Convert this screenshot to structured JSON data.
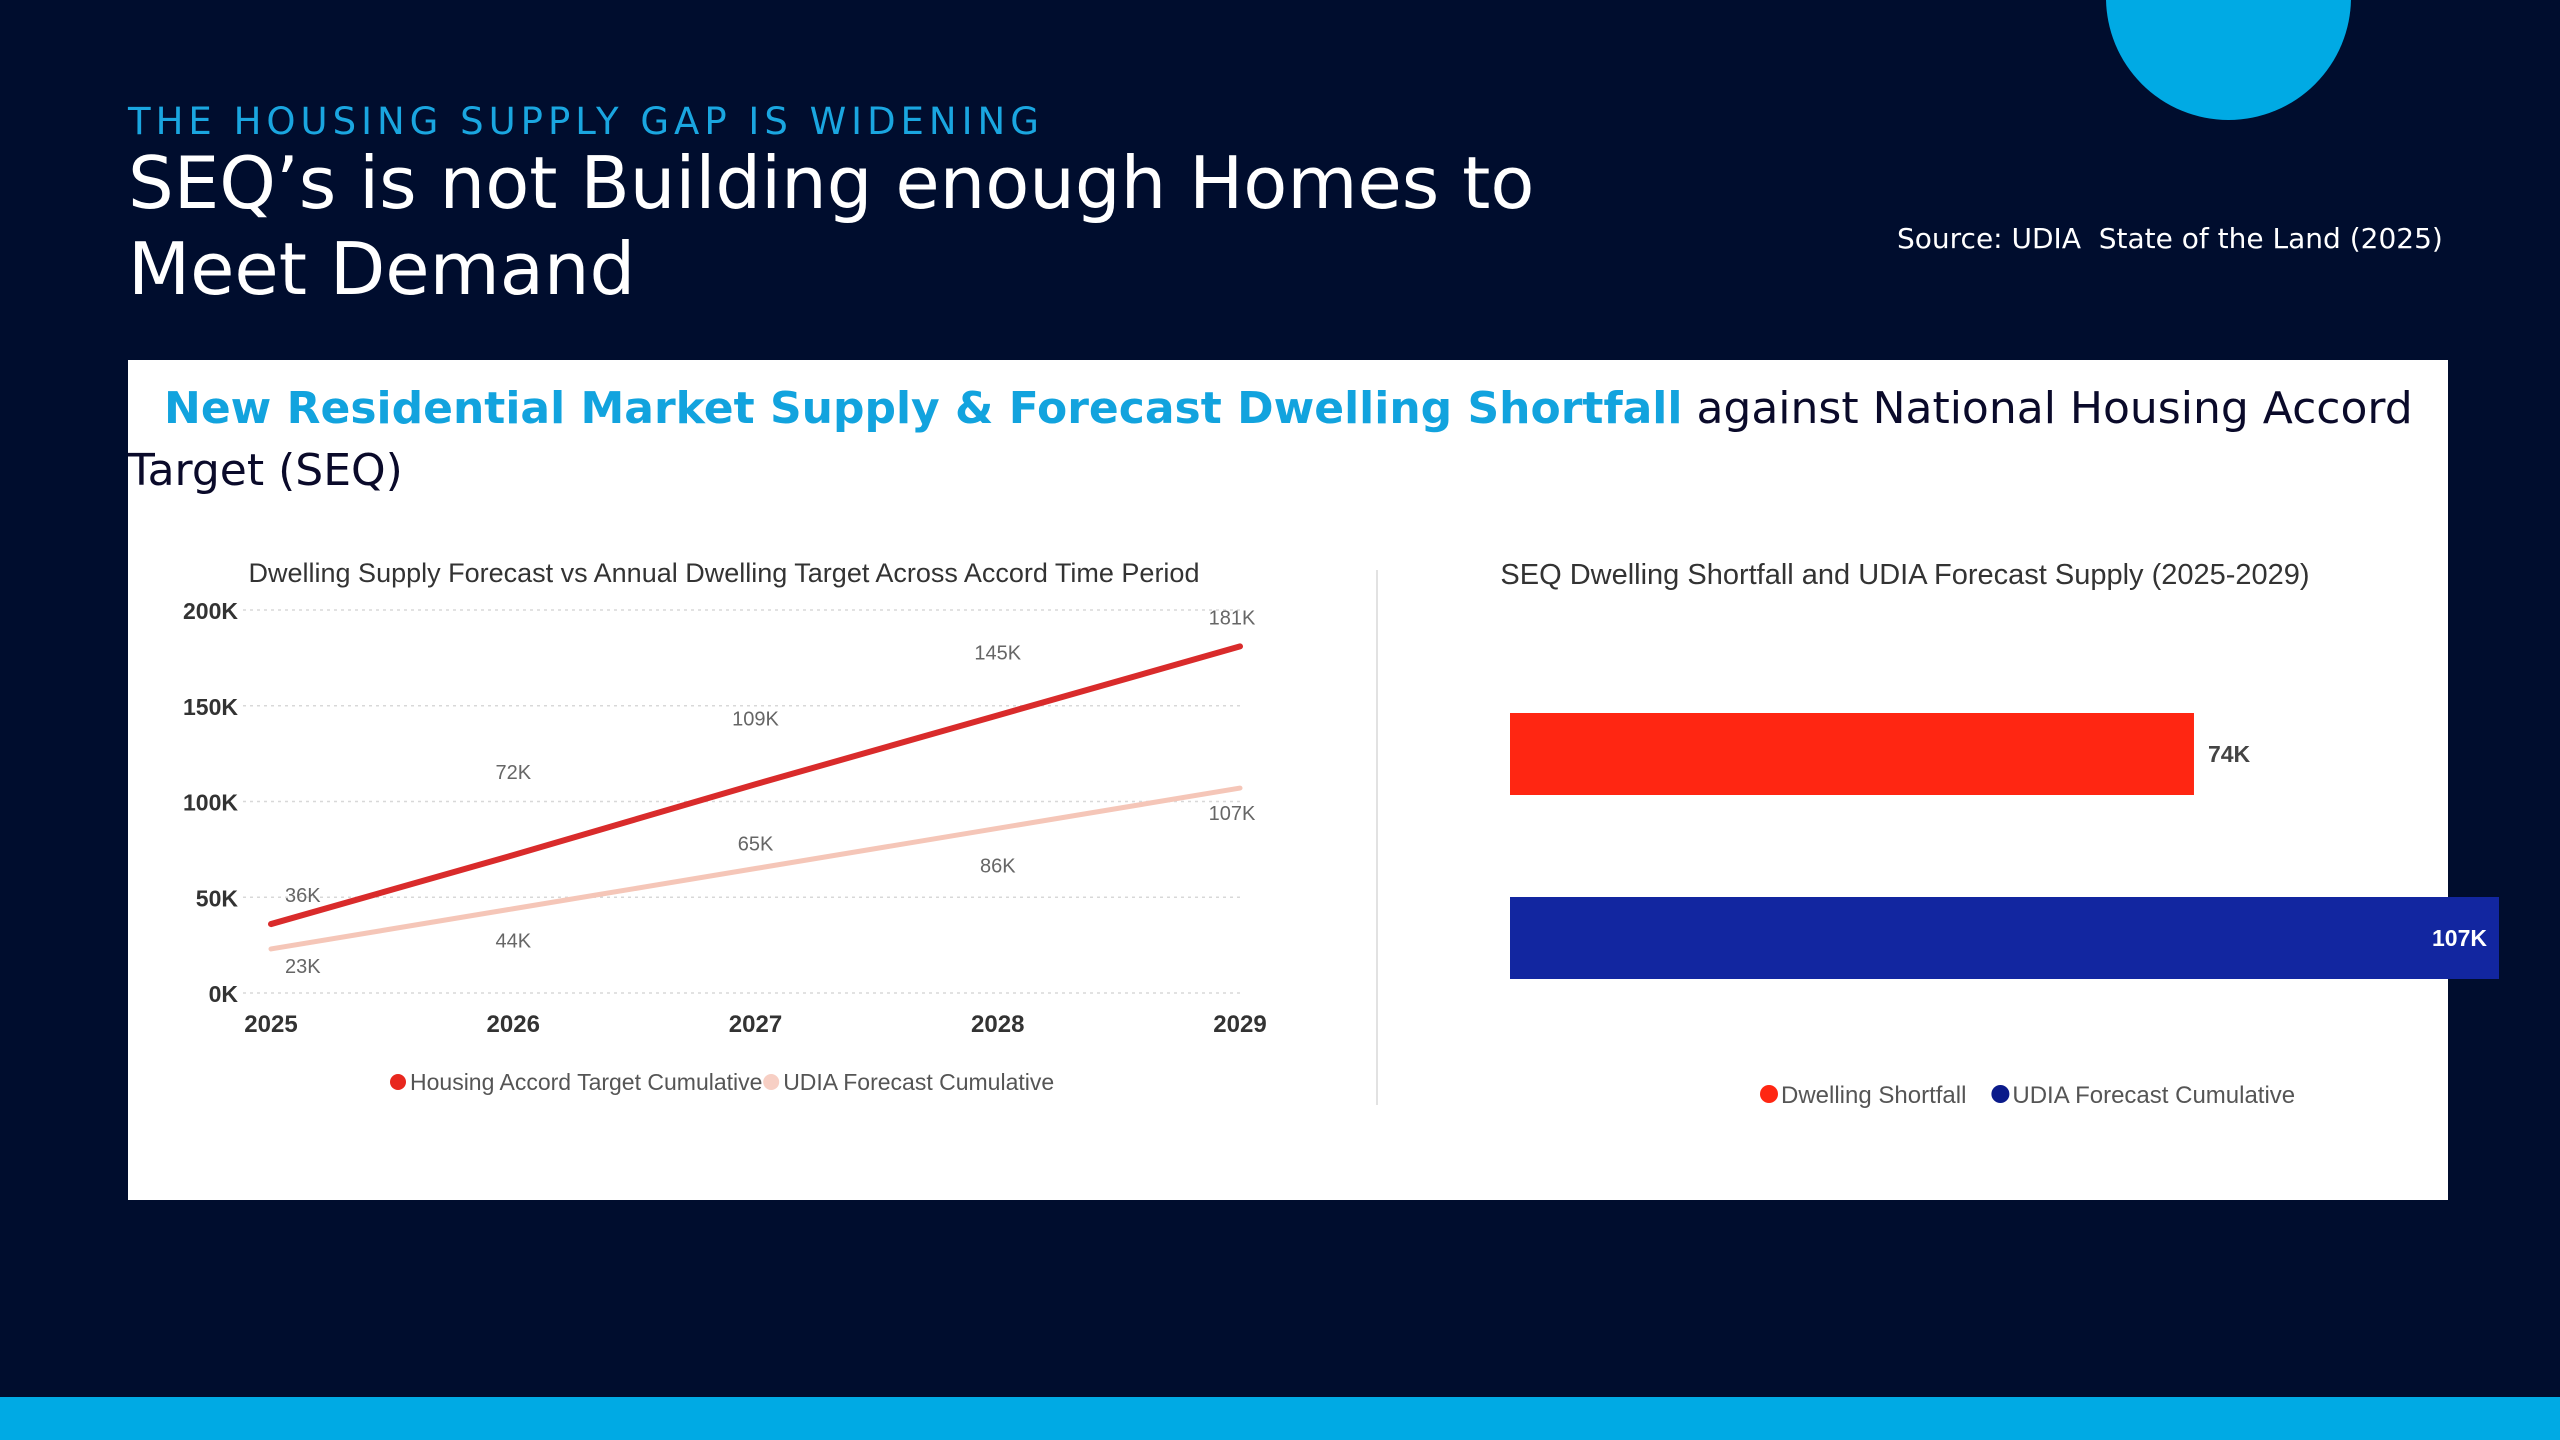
{
  "header": {
    "kicker": "THE HOUSING SUPPLY GAP IS WIDENING",
    "title": "SEQ’s is not Building enough Homes to Meet Demand",
    "source": "Source: UDIA  State of the Land (2025)"
  },
  "panel": {
    "heading_highlight": "New Residential Market Supply & Forecast Dwelling Shortfall",
    "heading_rest": " against National Housing Accord Target (SEQ)"
  },
  "colors": {
    "background": "#000d2e",
    "accent": "#00aae4",
    "target_line": "#d92b2b",
    "forecast_line": "#f5c6b8",
    "shortfall_bar": "#ff2612",
    "forecast_bar": "#1226a0"
  },
  "chart_data": [
    {
      "type": "line",
      "title": "Dwelling Supply Forecast vs Annual Dwelling Target Across Accord Time Period",
      "x": [
        "2025",
        "2026",
        "2027",
        "2028",
        "2029"
      ],
      "ylim": [
        0,
        200000
      ],
      "yticks": [
        "0K",
        "50K",
        "100K",
        "150K",
        "200K"
      ],
      "grid": true,
      "legend": "bottom",
      "series": [
        {
          "name": "Housing Accord Target Cumulative",
          "values": [
            36000,
            72000,
            109000,
            145000,
            181000
          ],
          "labels": [
            "36K",
            "72K",
            "109K",
            "145K",
            "181K"
          ]
        },
        {
          "name": "UDIA Forecast Cumulative",
          "values": [
            23000,
            44000,
            65000,
            86000,
            107000
          ],
          "labels": [
            "23K",
            "44K",
            "65K",
            "86K",
            "107K"
          ]
        }
      ]
    },
    {
      "type": "bar",
      "orientation": "horizontal",
      "title": "SEQ Dwelling Shortfall and UDIA Forecast Supply (2025-2029)",
      "categories": [
        "Dwelling Shortfall",
        "UDIA Forecast Cumulative"
      ],
      "values": [
        74000,
        107000
      ],
      "labels": [
        "74K",
        "107K"
      ],
      "legend": "bottom"
    }
  ]
}
